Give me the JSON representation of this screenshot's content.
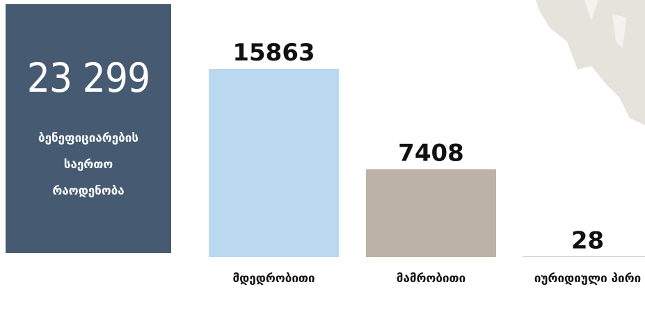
{
  "summary": {
    "total": "23 299",
    "caption": "ბენეფიციარების საერთო რაოდენობა"
  },
  "chart_data": {
    "type": "bar",
    "categories": [
      "მდედრობითი",
      "მამრობითი",
      "იურიდიული პირი"
    ],
    "values": [
      15863,
      7408,
      28
    ],
    "colors": [
      "#bad8ef",
      "#bcb3a6",
      "#6b8f99"
    ]
  }
}
